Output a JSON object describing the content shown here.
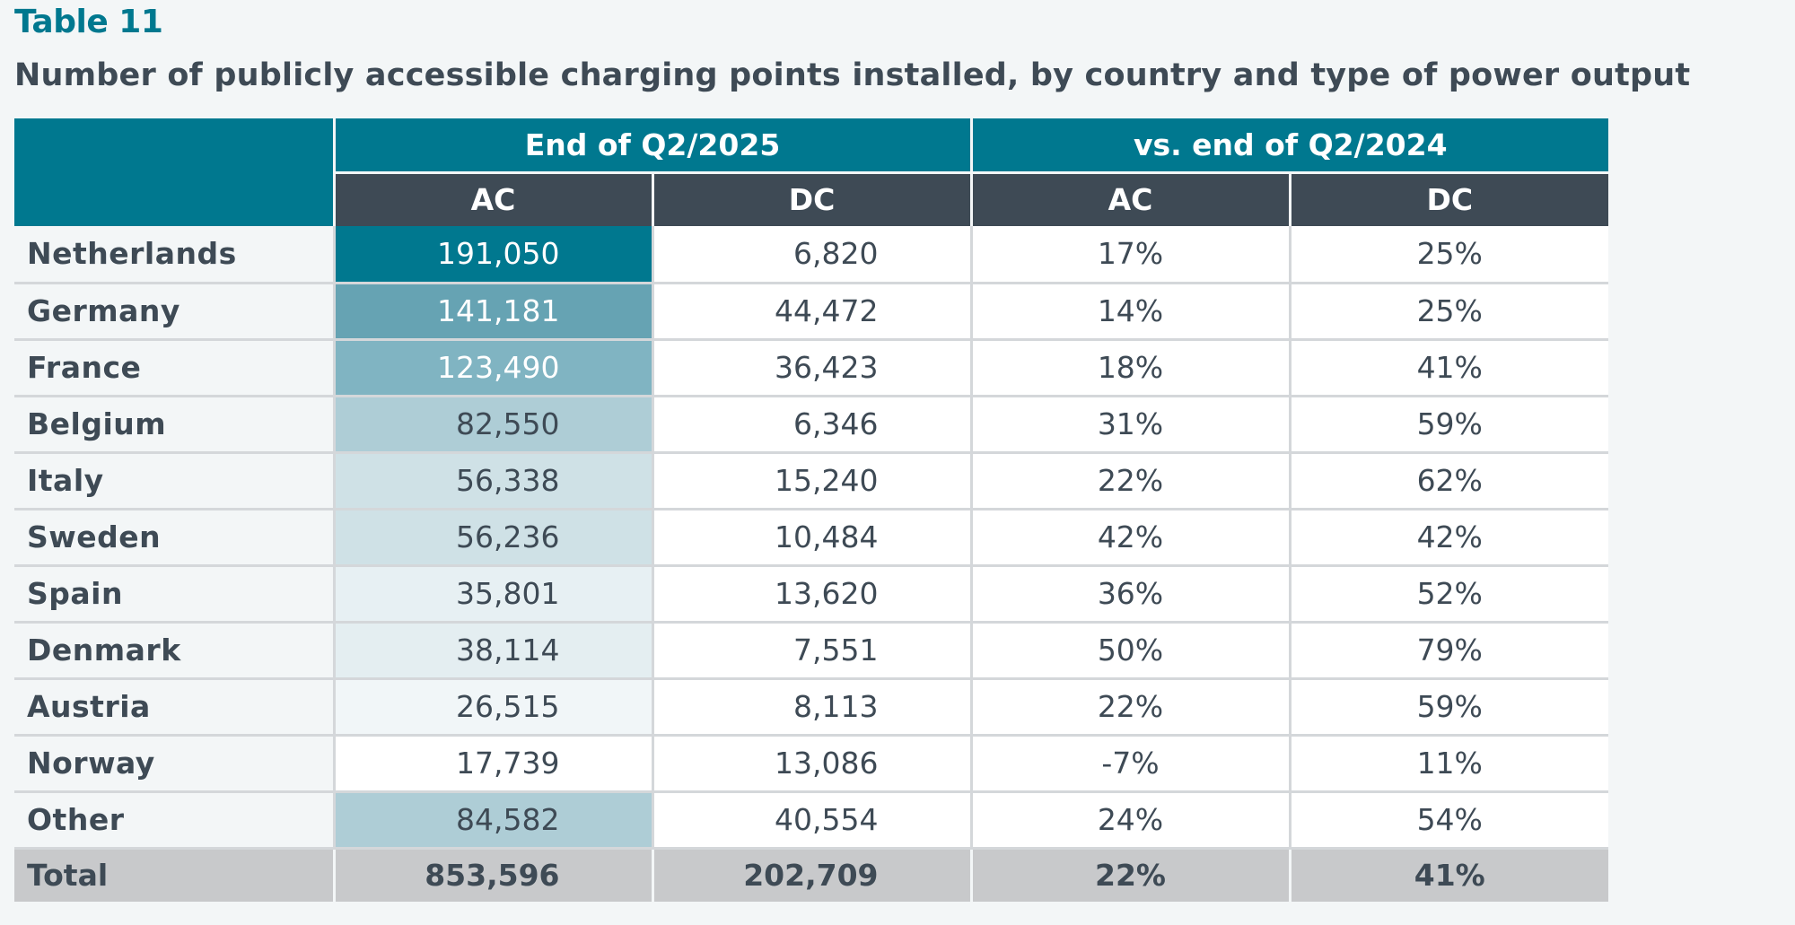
{
  "heading": {
    "table_label": "Table 11",
    "caption": "Number of publicly accessible charging points installed, by country and type of power output"
  },
  "table": {
    "group_headers": [
      "End of Q2/2025",
      "vs. end of Q2/2024"
    ],
    "sub_headers": [
      "AC",
      "DC",
      "AC",
      "DC"
    ],
    "rows": [
      {
        "country": "Netherlands",
        "ac": "191,050",
        "dc": "6,820",
        "ac_change": "17%",
        "dc_change": "25%",
        "ac_shade": "#00788f",
        "ac_text_color": "#ffffff"
      },
      {
        "country": "Germany",
        "ac": "141,181",
        "dc": "44,472",
        "ac_change": "14%",
        "dc_change": "25%",
        "ac_shade": "#66a3b3",
        "ac_text_color": "#ffffff"
      },
      {
        "country": "France",
        "ac": "123,490",
        "dc": "36,423",
        "ac_change": "18%",
        "dc_change": "41%",
        "ac_shade": "#80b4c2",
        "ac_text_color": "#ffffff"
      },
      {
        "country": "Belgium",
        "ac": "82,550",
        "dc": "6,346",
        "ac_change": "31%",
        "dc_change": "59%",
        "ac_shade": "#aecdd6",
        "ac_text_color": "#3e4a55"
      },
      {
        "country": "Italy",
        "ac": "56,338",
        "dc": "15,240",
        "ac_change": "22%",
        "dc_change": "62%",
        "ac_shade": "#cfe1e6",
        "ac_text_color": "#3e4a55"
      },
      {
        "country": "Sweden",
        "ac": "56,236",
        "dc": "10,484",
        "ac_change": "42%",
        "dc_change": "42%",
        "ac_shade": "#cfe1e6",
        "ac_text_color": "#3e4a55"
      },
      {
        "country": "Spain",
        "ac": "35,801",
        "dc": "13,620",
        "ac_change": "36%",
        "dc_change": "52%",
        "ac_shade": "#e7f0f3",
        "ac_text_color": "#3e4a55"
      },
      {
        "country": "Denmark",
        "ac": "38,114",
        "dc": "7,551",
        "ac_change": "50%",
        "dc_change": "79%",
        "ac_shade": "#e4eef1",
        "ac_text_color": "#3e4a55"
      },
      {
        "country": "Austria",
        "ac": "26,515",
        "dc": "8,113",
        "ac_change": "22%",
        "dc_change": "59%",
        "ac_shade": "#f1f6f8",
        "ac_text_color": "#3e4a55"
      },
      {
        "country": "Norway",
        "ac": "17,739",
        "dc": "13,086",
        "ac_change": "-7%",
        "dc_change": "11%",
        "ac_shade": "#ffffff",
        "ac_text_color": "#3e4a55"
      },
      {
        "country": "Other",
        "ac": "84,582",
        "dc": "40,554",
        "ac_change": "24%",
        "dc_change": "54%",
        "ac_shade": "#aecdd6",
        "ac_text_color": "#3e4a55"
      }
    ],
    "total": {
      "country": "Total",
      "ac": "853,596",
      "dc": "202,709",
      "ac_change": "22%",
      "dc_change": "41%"
    }
  }
}
